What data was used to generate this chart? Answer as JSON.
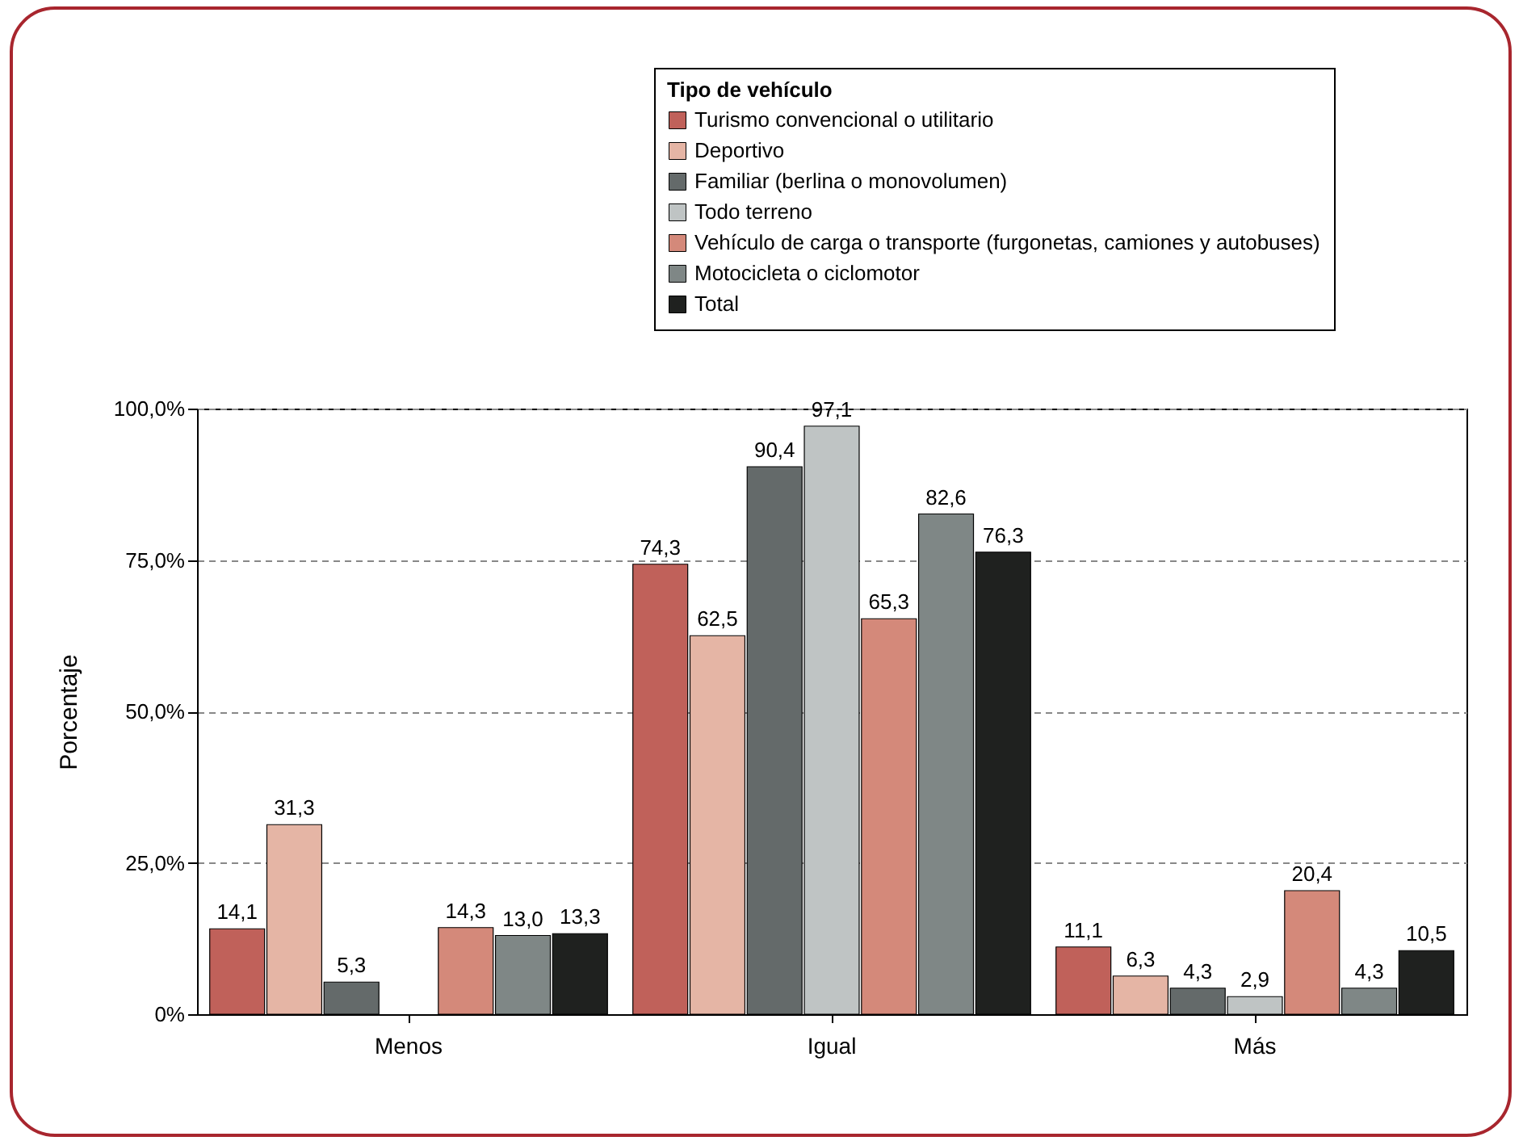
{
  "chart_data": {
    "type": "bar",
    "ylabel": "Porcentaje",
    "legend_title": "Tipo de vehículo",
    "legend": "top right",
    "grid": "y",
    "categories": [
      "Menos",
      "Igual",
      "Más"
    ],
    "ylim": [
      0,
      100
    ],
    "yticks": [
      {
        "value": 0,
        "label": "0%"
      },
      {
        "value": 25,
        "label": "25,0%"
      },
      {
        "value": 50,
        "label": "50,0%"
      },
      {
        "value": 75,
        "label": "75,0%"
      },
      {
        "value": 100,
        "label": "100,0%"
      }
    ],
    "series": [
      {
        "name": "Turismo convencional o utilitario",
        "color": "#c0615a",
        "values": [
          14.1,
          74.3,
          11.1
        ],
        "value_labels": [
          "14,1",
          "74,3",
          "11,1"
        ]
      },
      {
        "name": "Deportivo",
        "color": "#e5b5a5",
        "values": [
          31.3,
          62.5,
          6.3
        ],
        "value_labels": [
          "31,3",
          "62,5",
          "6,3"
        ]
      },
      {
        "name": "Familiar (berlina o monovolumen)",
        "color": "#646a6a",
        "values": [
          5.3,
          90.4,
          4.3
        ],
        "value_labels": [
          "5,3",
          "90,4",
          "4,3"
        ]
      },
      {
        "name": "Todo terreno",
        "color": "#bfc4c4",
        "values": [
          null,
          97.1,
          2.9
        ],
        "value_labels": [
          null,
          "97,1",
          "2,9"
        ]
      },
      {
        "name": "Vehículo de carga o transporte (furgonetas, camiones y autobuses)",
        "color": "#d4897a",
        "values": [
          14.3,
          65.3,
          20.4
        ],
        "value_labels": [
          "14,3",
          "65,3",
          "20,4"
        ]
      },
      {
        "name": "Motocicleta o ciclomotor",
        "color": "#7f8786",
        "values": [
          13.0,
          82.6,
          4.3
        ],
        "value_labels": [
          "13,0",
          "82,6",
          "4,3"
        ]
      },
      {
        "name": "Total",
        "color": "#1f211f",
        "values": [
          13.3,
          76.3,
          10.5
        ],
        "value_labels": [
          "13,3",
          "76,3",
          "10,5"
        ]
      }
    ]
  }
}
